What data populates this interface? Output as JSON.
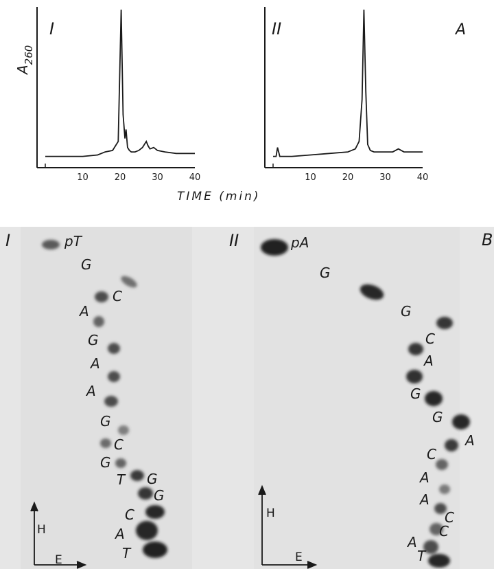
{
  "figure": {
    "panel_A_label": "A",
    "panel_B_label": "B",
    "time_axis_label": "TIME (min)",
    "y_axis_label": "A",
    "y_axis_subscript": "260",
    "colors": {
      "ink": "#1a1a1a",
      "tlc_background": "#e4e4e4",
      "spot": "#1e1e1e"
    }
  },
  "chart_data": [
    {
      "type": "line",
      "panel": "I",
      "x_ticks": [
        10,
        20,
        30,
        40
      ],
      "xlim": [
        0,
        40
      ],
      "xlabel": "TIME (min)",
      "ylabel": "A260",
      "series": [
        {
          "x": [
            0,
            5,
            10,
            14,
            16,
            18,
            19.5,
            20.3,
            20.8,
            21.3,
            21.6,
            22,
            22.5,
            23,
            24,
            25,
            26,
            27,
            27.5,
            28,
            29,
            30,
            32,
            35,
            38,
            40
          ],
          "y": [
            0.02,
            0.02,
            0.02,
            0.03,
            0.05,
            0.06,
            0.12,
            1.0,
            0.3,
            0.14,
            0.2,
            0.08,
            0.06,
            0.05,
            0.05,
            0.06,
            0.08,
            0.12,
            0.09,
            0.07,
            0.08,
            0.06,
            0.05,
            0.04,
            0.04,
            0.04
          ]
        }
      ]
    },
    {
      "type": "line",
      "panel": "II",
      "x_ticks": [
        10,
        20,
        30,
        40
      ],
      "xlim": [
        0,
        40
      ],
      "xlabel": "TIME (min)",
      "ylabel": "A260",
      "series": [
        {
          "x": [
            0,
            0.8,
            1.2,
            1.8,
            5,
            10,
            15,
            20,
            22,
            23,
            23.8,
            24.3,
            24.8,
            25.3,
            26,
            27,
            30,
            32,
            33.5,
            35,
            38,
            40
          ],
          "y": [
            0.02,
            0.02,
            0.08,
            0.02,
            0.02,
            0.03,
            0.04,
            0.05,
            0.07,
            0.12,
            0.4,
            1.0,
            0.45,
            0.1,
            0.06,
            0.05,
            0.05,
            0.05,
            0.07,
            0.05,
            0.05,
            0.05
          ]
        }
      ]
    }
  ],
  "tlc_I": {
    "roman": "I",
    "labels": [
      {
        "text": "pT"
      },
      {
        "text": "G"
      },
      {
        "text": "C"
      },
      {
        "text": "A"
      },
      {
        "text": "G"
      },
      {
        "text": "A"
      },
      {
        "text": "A"
      },
      {
        "text": "G"
      },
      {
        "text": "C"
      },
      {
        "text": "G"
      },
      {
        "text": "T"
      },
      {
        "text": "G"
      },
      {
        "text": "G"
      },
      {
        "text": "C"
      },
      {
        "text": "A"
      },
      {
        "text": "T"
      }
    ],
    "arrow_h": "H",
    "arrow_e": "E"
  },
  "tlc_II": {
    "roman": "II",
    "labels": [
      {
        "text": "pA"
      },
      {
        "text": "G"
      },
      {
        "text": "G"
      },
      {
        "text": "C"
      },
      {
        "text": "A"
      },
      {
        "text": "G"
      },
      {
        "text": "G"
      },
      {
        "text": "A"
      },
      {
        "text": "C"
      },
      {
        "text": "A"
      },
      {
        "text": "A"
      },
      {
        "text": "C"
      },
      {
        "text": "C"
      },
      {
        "text": "A"
      },
      {
        "text": "T"
      }
    ],
    "arrow_h": "H",
    "arrow_e": "E"
  }
}
